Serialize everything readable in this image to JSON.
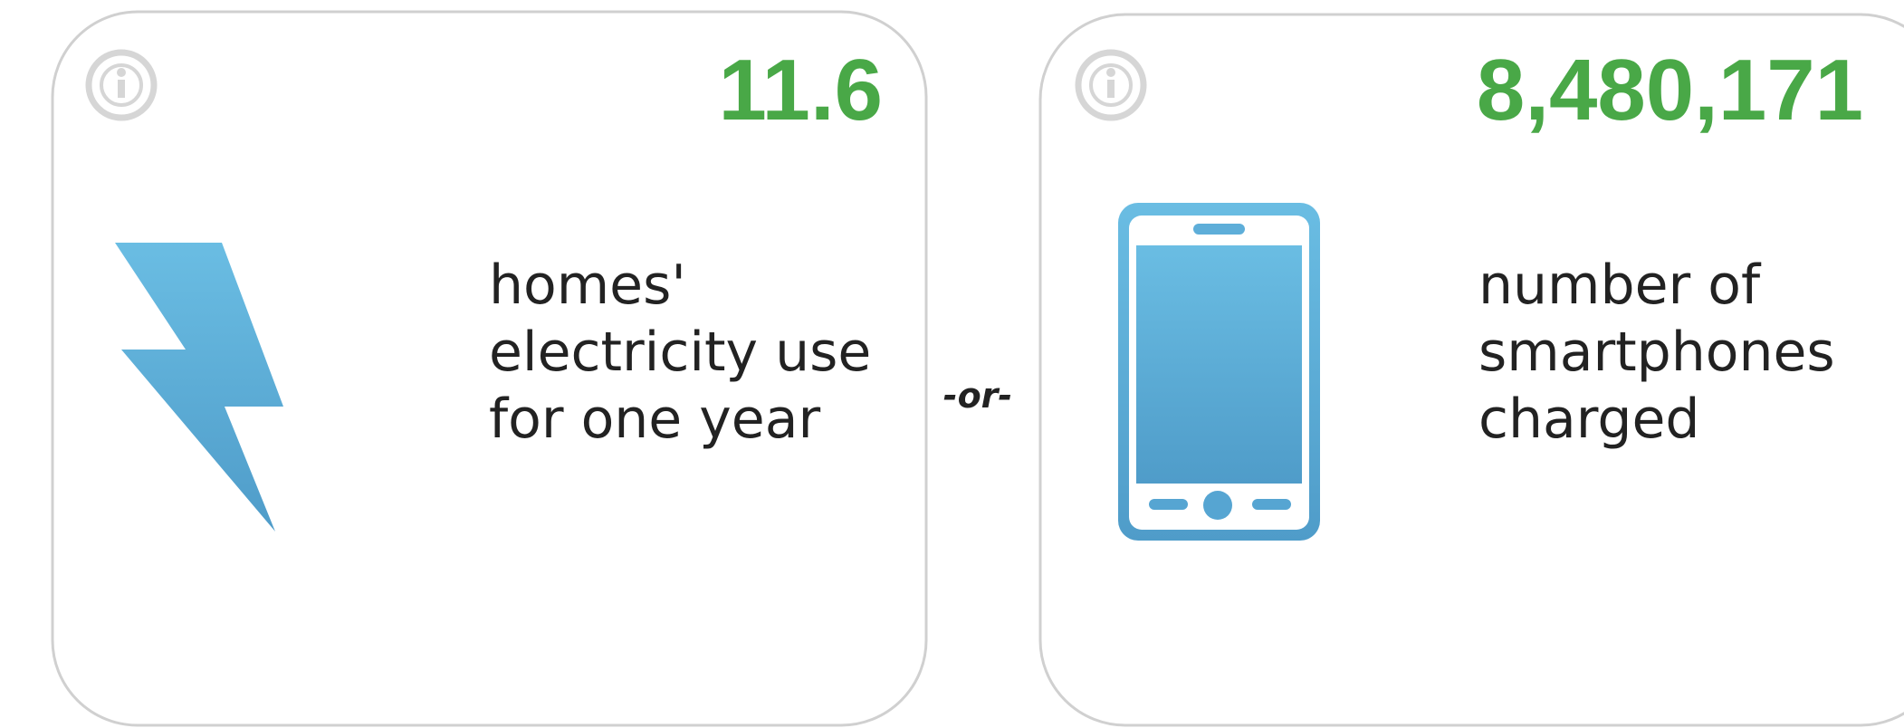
{
  "cards": [
    {
      "value": "11.6",
      "description": [
        "homes'",
        "electricity use",
        "for one year"
      ]
    },
    {
      "value": "8,480,171",
      "description": [
        "number of",
        "smartphones",
        "charged"
      ]
    }
  ],
  "separator": "-or-"
}
